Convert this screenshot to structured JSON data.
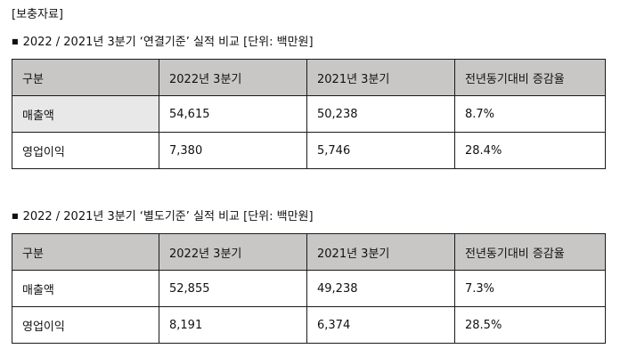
{
  "supplement_label": "[보충자료]",
  "section1": {
    "bullet": "■",
    "heading": "2022 / 2021년 3분기 ‘연결기준’ 실적 비교 [단위: 백만원]",
    "headers": [
      "구분",
      "2022년 3분기",
      "2021년 3분기",
      "전년동기대비 증감율"
    ],
    "rows": [
      {
        "label": "매출액",
        "cells": [
          "54,615",
          "50,238",
          "8.7%"
        ]
      },
      {
        "label": "영업이익",
        "cells": [
          "7,380",
          "5,746",
          "28.4%"
        ]
      }
    ]
  },
  "section2": {
    "bullet": "■",
    "heading": "2022 / 2021년 3분기 ‘별도기준’ 실적 비교 [단위: 백만원]",
    "headers": [
      "구분",
      "2022년 3분기",
      "2021년 3분기",
      "전년동기대비 증감율"
    ],
    "rows": [
      {
        "label": "매출액",
        "cells": [
          "52,855",
          "49,238",
          "7.3%"
        ]
      },
      {
        "label": "영업이익",
        "cells": [
          "8,191",
          "6,374",
          "28.5%"
        ]
      }
    ]
  }
}
